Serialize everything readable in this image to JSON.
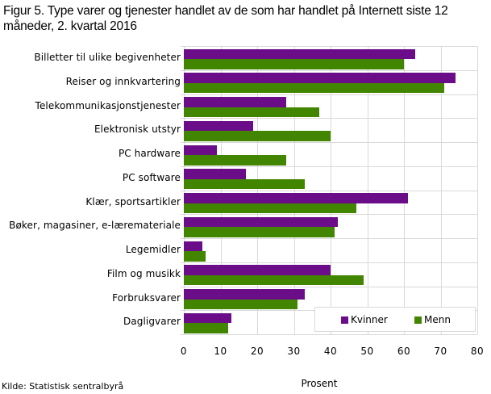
{
  "title": "Figur 5. Type varer og tjenester handlet av de som har handlet på Internett siste 12 måneder, 2. kvartal 2016",
  "source": "Kilde: Statistisk sentralbyrå",
  "colors": {
    "Kvinner": "#6b0d88",
    "Menn": "#428500",
    "grid": "#d9d9d9"
  },
  "chart_data": {
    "type": "bar",
    "orientation": "horizontal",
    "title": "Figur 5. Type varer og tjenester handlet av de som har handlet på Internett siste 12 måneder, 2. kvartal 2016",
    "xlabel": "Prosent",
    "ylabel": "",
    "xlim": [
      0,
      80
    ],
    "xticks": [
      0,
      10,
      20,
      30,
      40,
      50,
      60,
      70,
      80
    ],
    "grid": true,
    "legend_position": "bottom-right inside",
    "categories": [
      "Billetter til ulike begivenheter",
      "Reiser og innkvartering",
      "Telekommunikasjonstjenester",
      "Elektronisk utstyr",
      "PC hardware",
      "PC software",
      "Klær, sportsartikler",
      "Bøker, magasiner, e-læremateriale",
      "Legemidler",
      "Film og musikk",
      "Forbruksvarer",
      "Dagligvarer"
    ],
    "series": [
      {
        "name": "Kvinner",
        "color": "#6b0d88",
        "values": [
          63,
          74,
          28,
          19,
          9,
          17,
          61,
          42,
          5,
          40,
          33,
          13
        ]
      },
      {
        "name": "Menn",
        "color": "#428500",
        "values": [
          60,
          71,
          37,
          40,
          28,
          33,
          47,
          41,
          6,
          49,
          31,
          12
        ]
      }
    ]
  }
}
